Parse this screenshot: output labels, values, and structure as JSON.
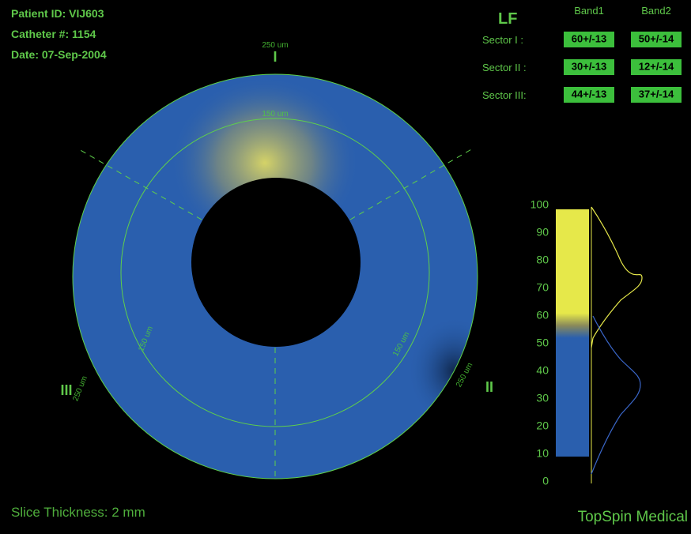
{
  "header": {
    "patient_id": "Patient ID: VIJ603",
    "catheter": "Catheter #: 1154",
    "date": "Date: 07-Sep-2004"
  },
  "table": {
    "title": "LF",
    "columns": [
      "Band1",
      "Band2"
    ],
    "rows": [
      {
        "label": "Sector I :",
        "cells": [
          "60+/-13",
          "50+/-14"
        ]
      },
      {
        "label": "Sector II :",
        "cells": [
          "30+/-13",
          "12+/-14"
        ]
      },
      {
        "label": "Sector III:",
        "cells": [
          "44+/-13",
          "37+/-14"
        ]
      }
    ]
  },
  "sectors": [
    "I",
    "II",
    "III"
  ],
  "ring_labels": [
    "250 um",
    "150 um",
    "150 um",
    "250 um",
    "150 um",
    "250 um"
  ],
  "scale": {
    "ticks": [
      0,
      10,
      20,
      30,
      40,
      50,
      60,
      70,
      80,
      90,
      100
    ]
  },
  "footer": {
    "slice_thickness": "Slice Thickness: 2 mm",
    "brand": "TopSpin Medical"
  }
}
